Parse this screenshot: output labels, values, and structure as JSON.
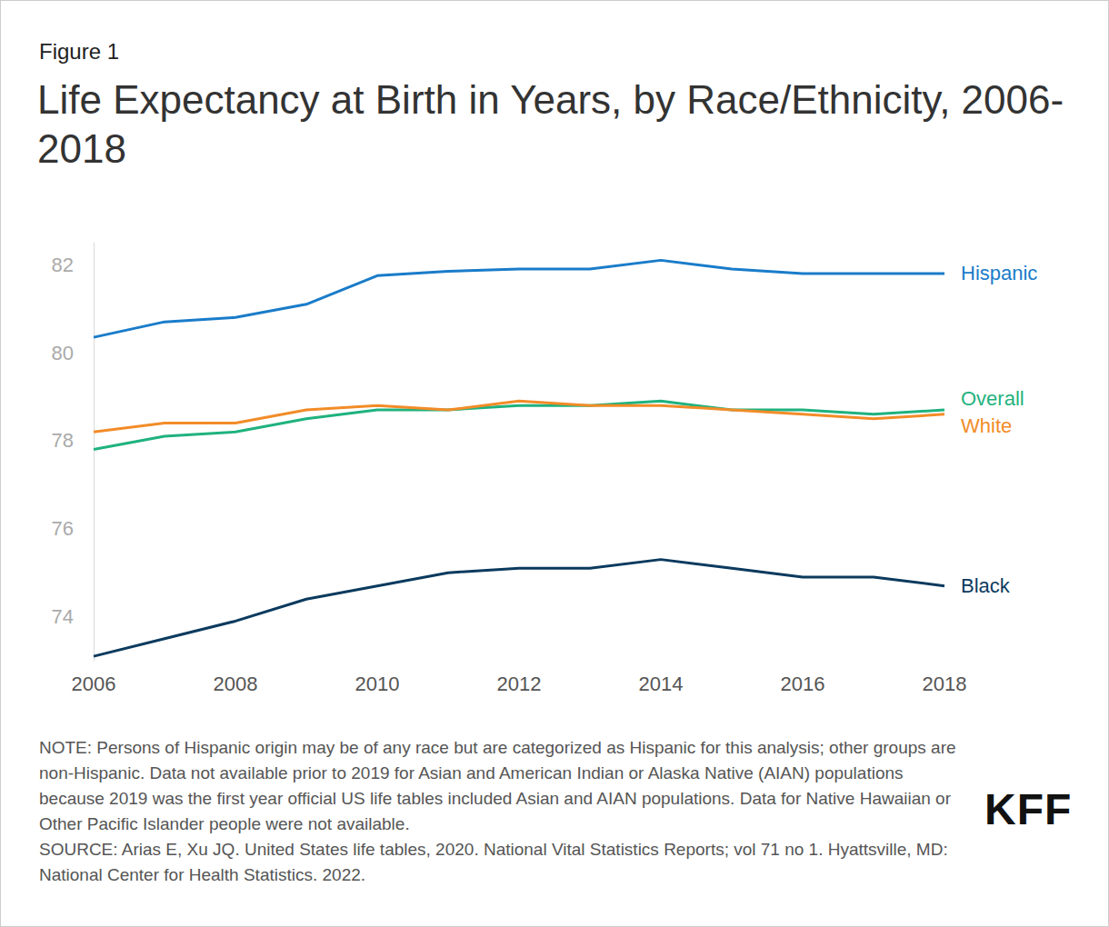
{
  "chart_data": {
    "type": "line",
    "figure_label": "Figure 1",
    "title": "Life Expectancy at Birth in Years, by Race/Ethnicity, 2006-2018",
    "x": [
      2006,
      2007,
      2008,
      2009,
      2010,
      2011,
      2012,
      2013,
      2014,
      2015,
      2016,
      2017,
      2018
    ],
    "series": [
      {
        "name": "Hispanic",
        "color": "#1a7cc9",
        "values": [
          80.35,
          80.7,
          80.8,
          81.1,
          81.75,
          81.85,
          81.9,
          81.9,
          82.1,
          81.9,
          81.8,
          81.8,
          81.8
        ]
      },
      {
        "name": "Overall",
        "color": "#1fb27e",
        "values": [
          77.8,
          78.1,
          78.2,
          78.5,
          78.7,
          78.7,
          78.8,
          78.8,
          78.9,
          78.7,
          78.7,
          78.6,
          78.7
        ]
      },
      {
        "name": "White",
        "color": "#f28c28",
        "values": [
          78.2,
          78.4,
          78.4,
          78.7,
          78.8,
          78.7,
          78.9,
          78.8,
          78.8,
          78.7,
          78.6,
          78.5,
          78.6
        ]
      },
      {
        "name": "Black",
        "color": "#0b3a5e",
        "values": [
          73.1,
          73.5,
          73.9,
          74.4,
          74.7,
          75.0,
          75.1,
          75.1,
          75.3,
          75.1,
          74.9,
          74.9,
          74.7
        ]
      }
    ],
    "xlim": [
      2006,
      2018
    ],
    "xticks": [
      2006,
      2008,
      2010,
      2012,
      2014,
      2016,
      2018
    ],
    "ylim": [
      73,
      82.5
    ],
    "yticks": [
      74,
      76,
      78,
      80,
      82
    ],
    "grid": false,
    "notes": [
      "NOTE: Persons of Hispanic origin may be of any race but are categorized as Hispanic for this analysis; other groups are non-Hispanic. Data not available prior to 2019 for Asian and American Indian or Alaska Native (AIAN) populations because 2019 was the first year official US life tables included Asian and AIAN populations. Data for Native Hawaiian or Other Pacific Islander people were not available.",
      "SOURCE: Arias E, Xu JQ. United States life tables, 2020. National Vital Statistics Reports; vol 71 no 1. Hyattsville, MD: National Center for Health Statistics. 2022."
    ],
    "logo": "KFF"
  }
}
